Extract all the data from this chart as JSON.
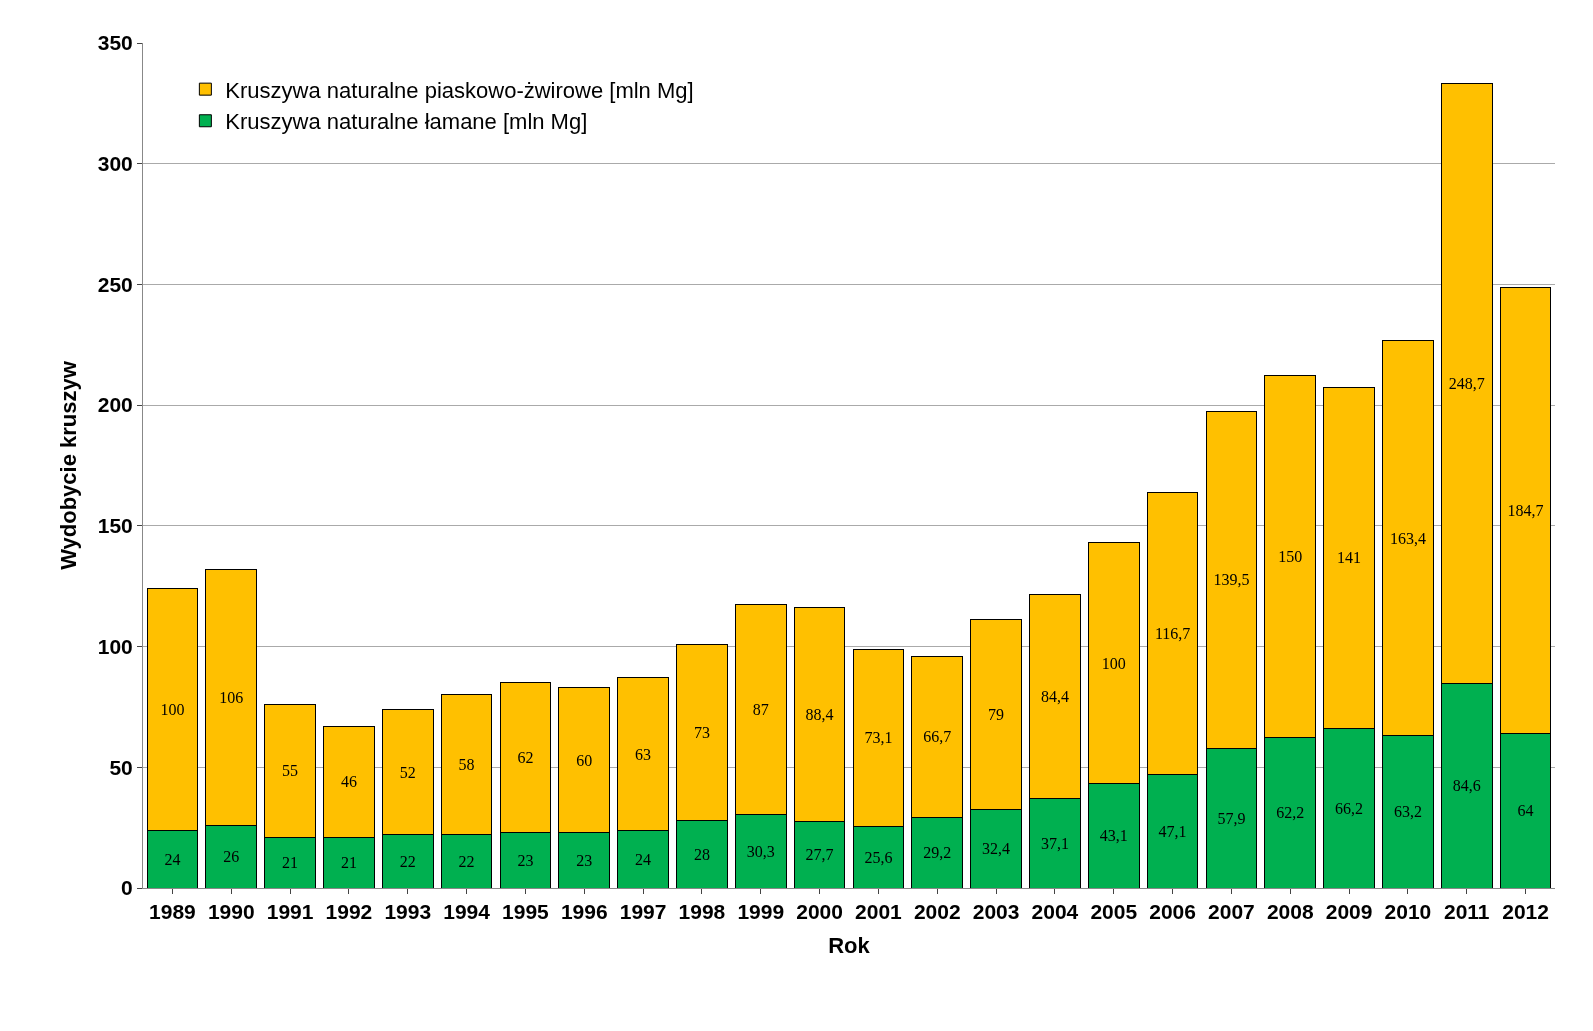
{
  "chart_data": {
    "type": "bar",
    "stacked": true,
    "xlabel": "Rok",
    "ylabel": "Wydobycie kruszyw",
    "categories": [
      "1989",
      "1990",
      "1991",
      "1992",
      "1993",
      "1994",
      "1995",
      "1996",
      "1997",
      "1998",
      "1999",
      "2000",
      "2001",
      "2002",
      "2003",
      "2004",
      "2005",
      "2006",
      "2007",
      "2008",
      "2009",
      "2010",
      "2011",
      "2012"
    ],
    "series": [
      {
        "name": "Kruszywa naturalne łamane [mln Mg]",
        "color": "#00b050",
        "values": [
          24,
          26,
          21,
          21,
          22,
          22,
          23,
          23,
          24,
          28,
          30.3,
          27.7,
          25.6,
          29.2,
          32.4,
          37.1,
          43.1,
          47.1,
          57.9,
          62.2,
          66.2,
          63.2,
          84.6,
          64
        ],
        "value_labels": [
          "24",
          "26",
          "21",
          "21",
          "22",
          "22",
          "23",
          "23",
          "24",
          "28",
          "30,3",
          "27,7",
          "25,6",
          "29,2",
          "32,4",
          "37,1",
          "43,1",
          "47,1",
          "57,9",
          "62,2",
          "66,2",
          "63,2",
          "84,6",
          "64"
        ]
      },
      {
        "name": "Kruszywa naturalne piaskowo-żwirowe [mln Mg]",
        "color": "#ffc000",
        "values": [
          100,
          106,
          55,
          46,
          52,
          58,
          62,
          60,
          63,
          73,
          87,
          88.4,
          73.1,
          66.7,
          79,
          84.4,
          100,
          116.7,
          139.5,
          150,
          141,
          163.4,
          248.7,
          184.7
        ],
        "value_labels": [
          "100",
          "106",
          "55",
          "46",
          "52",
          "58",
          "62",
          "60",
          "63",
          "73",
          "87",
          "88,4",
          "73,1",
          "66,7",
          "79",
          "84,4",
          "100",
          "116,7",
          "139,5",
          "150",
          "141",
          "163,4",
          "248,7",
          "184,7"
        ]
      }
    ],
    "ylim": [
      0,
      350
    ],
    "yticks": [
      0,
      50,
      100,
      150,
      200,
      250,
      300,
      350
    ],
    "grid": "y",
    "legend": "top left"
  }
}
